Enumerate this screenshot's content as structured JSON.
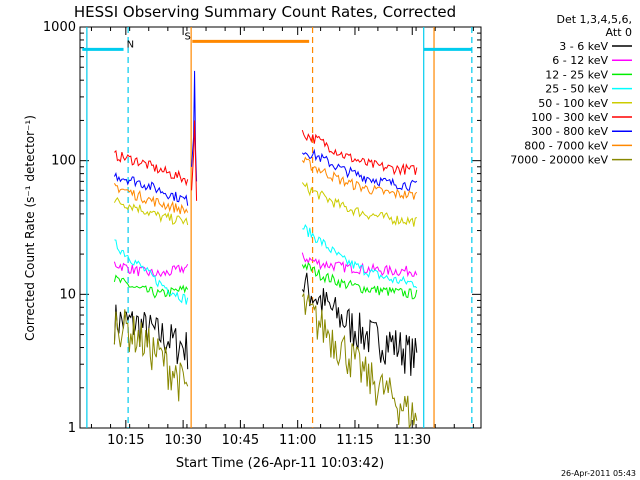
{
  "chart_data": {
    "type": "line",
    "title": "HESSI Observing Summary Count Rates, Corrected",
    "xlabel": "Start Time (26-Apr-11 10:03:42)",
    "ylabel": "Corrected Count Rate (s⁻¹ detector⁻¹)",
    "y_scale": "log",
    "ylim": [
      1,
      1000
    ],
    "xlim_minutes": [
      10.05,
      11.8
    ],
    "y_ticks": [
      "1",
      "10",
      "100",
      "1000"
    ],
    "x_ticks": [
      {
        "label": "10:15",
        "t": 10.25
      },
      {
        "label": "10:30",
        "t": 10.5
      },
      {
        "label": "10:45",
        "t": 10.75
      },
      {
        "label": "11:00",
        "t": 11.0
      },
      {
        "label": "11:15",
        "t": 11.25
      },
      {
        "label": "11:30",
        "t": 11.5
      }
    ],
    "legend_header": [
      "Det 1,3,4,5,6,",
      "Att 0"
    ],
    "legend_position": "right",
    "series": [
      {
        "name": "3 - 6 keV",
        "color": "#000000",
        "seg1": [
          [
            10.2,
            6.5
          ],
          [
            10.3,
            6.0
          ],
          [
            10.4,
            5.0
          ],
          [
            10.52,
            4.0
          ]
        ],
        "seg2": [
          [
            11.02,
            12
          ],
          [
            11.1,
            9
          ],
          [
            11.2,
            6.5
          ],
          [
            11.3,
            5
          ],
          [
            11.4,
            4.5
          ],
          [
            11.52,
            3.5
          ]
        ]
      },
      {
        "name": "6 - 12 keV",
        "color": "#ff00ff",
        "seg1": [
          [
            10.2,
            17
          ],
          [
            10.3,
            15
          ],
          [
            10.4,
            14
          ],
          [
            10.52,
            16
          ]
        ],
        "seg2": [
          [
            11.02,
            19
          ],
          [
            11.1,
            17
          ],
          [
            11.2,
            16
          ],
          [
            11.3,
            15.5
          ],
          [
            11.4,
            15
          ],
          [
            11.52,
            15
          ]
        ]
      },
      {
        "name": "12 - 25 keV",
        "color": "#00ee00",
        "seg1": [
          [
            10.2,
            13
          ],
          [
            10.3,
            11
          ],
          [
            10.4,
            10
          ],
          [
            10.52,
            11
          ]
        ],
        "seg2": [
          [
            11.02,
            17
          ],
          [
            11.1,
            14
          ],
          [
            11.2,
            12
          ],
          [
            11.3,
            11
          ],
          [
            11.4,
            10.5
          ],
          [
            11.52,
            10
          ]
        ]
      },
      {
        "name": "25 - 50 keV",
        "color": "#00ffff",
        "seg1": [
          [
            10.2,
            24
          ],
          [
            10.3,
            17
          ],
          [
            10.4,
            12
          ],
          [
            10.52,
            9
          ]
        ],
        "seg2": [
          [
            11.02,
            32
          ],
          [
            11.1,
            25
          ],
          [
            11.2,
            18
          ],
          [
            11.3,
            15
          ],
          [
            11.4,
            13
          ],
          [
            11.52,
            12
          ]
        ]
      },
      {
        "name": "50 - 100 keV",
        "color": "#cccc00",
        "seg1": [
          [
            10.2,
            50
          ],
          [
            10.3,
            45
          ],
          [
            10.4,
            38
          ],
          [
            10.52,
            35
          ]
        ],
        "seg2": [
          [
            11.02,
            65
          ],
          [
            11.1,
            55
          ],
          [
            11.2,
            45
          ],
          [
            11.3,
            40
          ],
          [
            11.4,
            37
          ],
          [
            11.52,
            35
          ]
        ]
      },
      {
        "name": "100 - 300 keV",
        "color": "#ff0000",
        "seg1": [
          [
            10.2,
            110
          ],
          [
            10.3,
            100
          ],
          [
            10.4,
            85
          ],
          [
            10.52,
            72
          ]
        ],
        "seg2": [
          [
            11.02,
            160
          ],
          [
            11.1,
            140
          ],
          [
            11.2,
            110
          ],
          [
            11.3,
            95
          ],
          [
            11.4,
            88
          ],
          [
            11.52,
            85
          ]
        ]
      },
      {
        "name": "300 - 800 keV",
        "color": "#0000ff",
        "seg1": [
          [
            10.2,
            78
          ],
          [
            10.3,
            70
          ],
          [
            10.4,
            60
          ],
          [
            10.52,
            50
          ]
        ],
        "seg2": [
          [
            11.02,
            120
          ],
          [
            11.1,
            105
          ],
          [
            11.2,
            85
          ],
          [
            11.3,
            75
          ],
          [
            11.4,
            68
          ],
          [
            11.52,
            65
          ]
        ]
      },
      {
        "name": "800 - 7000 keV",
        "color": "#ff8800",
        "seg1": [
          [
            10.2,
            65
          ],
          [
            10.3,
            55
          ],
          [
            10.4,
            48
          ],
          [
            10.52,
            42
          ]
        ],
        "seg2": [
          [
            11.02,
            100
          ],
          [
            11.1,
            85
          ],
          [
            11.2,
            70
          ],
          [
            11.3,
            62
          ],
          [
            11.4,
            57
          ],
          [
            11.52,
            55
          ]
        ]
      },
      {
        "name": "7000 - 20000 keV",
        "color": "#888800",
        "seg1": [
          [
            10.2,
            6.5
          ],
          [
            10.3,
            5
          ],
          [
            10.4,
            3.5
          ],
          [
            10.52,
            2.0
          ]
        ],
        "seg2": [
          [
            11.02,
            8.5
          ],
          [
            11.1,
            6
          ],
          [
            11.2,
            4
          ],
          [
            11.3,
            2.5
          ],
          [
            11.4,
            1.8
          ],
          [
            11.52,
            1.2
          ]
        ]
      }
    ],
    "flags": [
      {
        "label": "N",
        "color": "#00ccee",
        "segments": [
          [
            10.06,
            10.24
          ],
          [
            11.55,
            11.76
          ]
        ],
        "level": 680,
        "label_t": 10.27
      },
      {
        "label": "S",
        "color": "#ff8800",
        "segments": [
          [
            10.54,
            11.05
          ]
        ],
        "level": 780,
        "label_t": 10.52
      }
    ],
    "vlines": [
      {
        "t": 10.08,
        "color": "#00ccee",
        "dashed": false
      },
      {
        "t": 10.26,
        "color": "#00ccee",
        "dashed": true
      },
      {
        "t": 11.55,
        "color": "#00ccee",
        "dashed": false
      },
      {
        "t": 11.76,
        "color": "#00ccee",
        "dashed": true
      },
      {
        "t": 10.535,
        "color": "#ff8800",
        "dashed": false
      },
      {
        "t": 11.065,
        "color": "#ff8800",
        "dashed": true
      },
      {
        "t": 11.595,
        "color": "#ff8800",
        "dashed": false
      }
    ],
    "spike": {
      "t": 10.55,
      "peak": 470
    }
  },
  "footer_timestamp": "26-Apr-2011 05:43"
}
